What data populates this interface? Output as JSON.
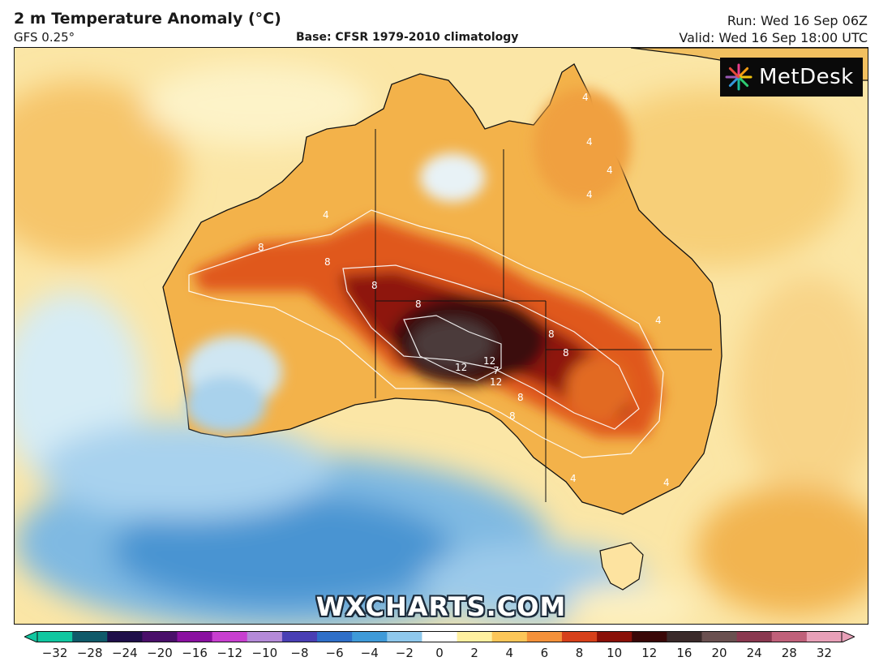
{
  "header": {
    "title": "2 m Temperature Anomaly (°C)",
    "model": "GFS 0.25°",
    "base": "Base: CFSR 1979-2010 climatology",
    "run": "Run: Wed 16 Sep 06Z",
    "valid": "Valid: Wed 16 Sep 18:00 UTC"
  },
  "logo": {
    "text": "MetDesk",
    "icon": "sunburst-logo-icon"
  },
  "watermark": "WXCHARTS.COM",
  "colorbar": {
    "ticks": [
      "−32",
      "−28",
      "−24",
      "−20",
      "−16",
      "−12",
      "−10",
      "−8",
      "−6",
      "−4",
      "−2",
      "0",
      "2",
      "4",
      "6",
      "8",
      "10",
      "12",
      "16",
      "20",
      "24",
      "28",
      "32"
    ],
    "colors": [
      "#10c7a0",
      "#105a6a",
      "#1f0f4a",
      "#4a0f6a",
      "#8a10a0",
      "#c83fd0",
      "#b48ad8",
      "#4a3fb4",
      "#2f6fc8",
      "#3f9ad8",
      "#8fc8ec",
      "#ffffff",
      "#fff0a0",
      "#fcc658",
      "#f4913a",
      "#d6401a",
      "#8a1008",
      "#3a0808",
      "#3a2a2a",
      "#6a5050",
      "#8a3850",
      "#c0607a",
      "#e8a0b8"
    ]
  },
  "contour_labels": [
    "4",
    "4",
    "4",
    "4",
    "4",
    "4",
    "4",
    "4",
    "8",
    "8",
    "8",
    "8",
    "8",
    "8",
    "8",
    "8",
    "12",
    "12",
    "12",
    "7"
  ]
}
